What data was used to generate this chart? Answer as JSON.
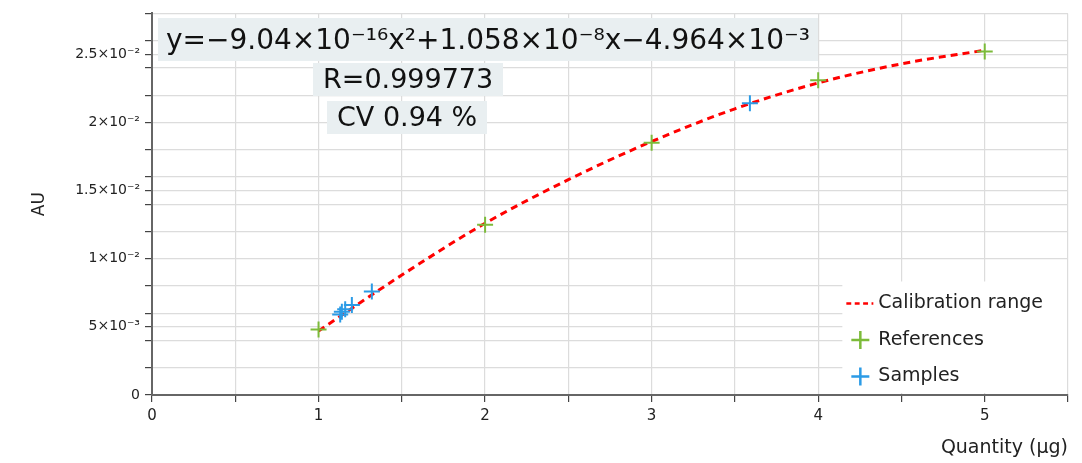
{
  "chart_data": {
    "type": "scatter",
    "xlabel": "Quantity (µg)",
    "ylabel": "AU",
    "annotations": [
      "y=−9.04×10⁻¹⁶x²+1.058×10⁻⁸x−4.964×10⁻³",
      "R=0.999773",
      "CV 0.94 %"
    ],
    "xlim": [
      0,
      5.5
    ],
    "xticks": [
      0,
      {
        "value": 0.5,
        "label": null
      },
      1,
      {
        "value": 1.5,
        "label": null
      },
      2,
      {
        "value": 2.5,
        "label": null
      },
      3,
      {
        "value": 3.5,
        "label": null
      },
      4,
      {
        "value": 4.5,
        "label": null
      },
      5,
      {
        "value": 5.5,
        "label": null
      }
    ],
    "ylim": [
      0,
      0.028
    ],
    "yticks": [
      0,
      {
        "value": 0.002,
        "label": null
      },
      {
        "value": 0.004,
        "label": null
      },
      {
        "value": 0.005,
        "label": "5×10⁻³"
      },
      {
        "value": 0.006,
        "label": null
      },
      {
        "value": 0.008,
        "label": null
      },
      {
        "value": 0.01,
        "label": "1×10⁻²"
      },
      {
        "value": 0.012,
        "label": null
      },
      {
        "value": 0.014,
        "label": null
      },
      {
        "value": 0.015,
        "label": "1.5×10⁻²"
      },
      {
        "value": 0.016,
        "label": null
      },
      {
        "value": 0.018,
        "label": null
      },
      {
        "value": 0.02,
        "label": "2×10⁻²"
      },
      {
        "value": 0.022,
        "label": null
      },
      {
        "value": 0.024,
        "label": null
      },
      {
        "value": 0.025,
        "label": "2.5×10⁻²"
      },
      {
        "value": 0.026,
        "label": null
      },
      {
        "value": 0.028,
        "label": null
      }
    ],
    "grid": true,
    "legend": "bottom right",
    "series": [
      {
        "name": "Calibration range",
        "type": "line",
        "line_style": "dashed",
        "marker": "none",
        "color": "#ff0000",
        "x": [
          1,
          1.5,
          2,
          2.5,
          3,
          3.5,
          4,
          4.5,
          5
        ],
        "values": [
          0.0047,
          0.0088,
          0.0126,
          0.0158,
          0.0186,
          0.021,
          0.0229,
          0.0243,
          0.0253
        ]
      },
      {
        "name": "References",
        "type": "scatter",
        "marker": "cross",
        "color": "#7cbb3a",
        "x": [
          1,
          2,
          3,
          4,
          5
        ],
        "values": [
          0.0048,
          0.0125,
          0.0185,
          0.0231,
          0.0252
        ]
      },
      {
        "name": "Samples",
        "type": "scatter",
        "marker": "cross",
        "color": "#2b9be6",
        "x": [
          1.13,
          1.14,
          1.16,
          1.2,
          1.32,
          3.59
        ],
        "values": [
          0.0059,
          0.0061,
          0.0063,
          0.0066,
          0.0076,
          0.0214
        ]
      }
    ]
  }
}
